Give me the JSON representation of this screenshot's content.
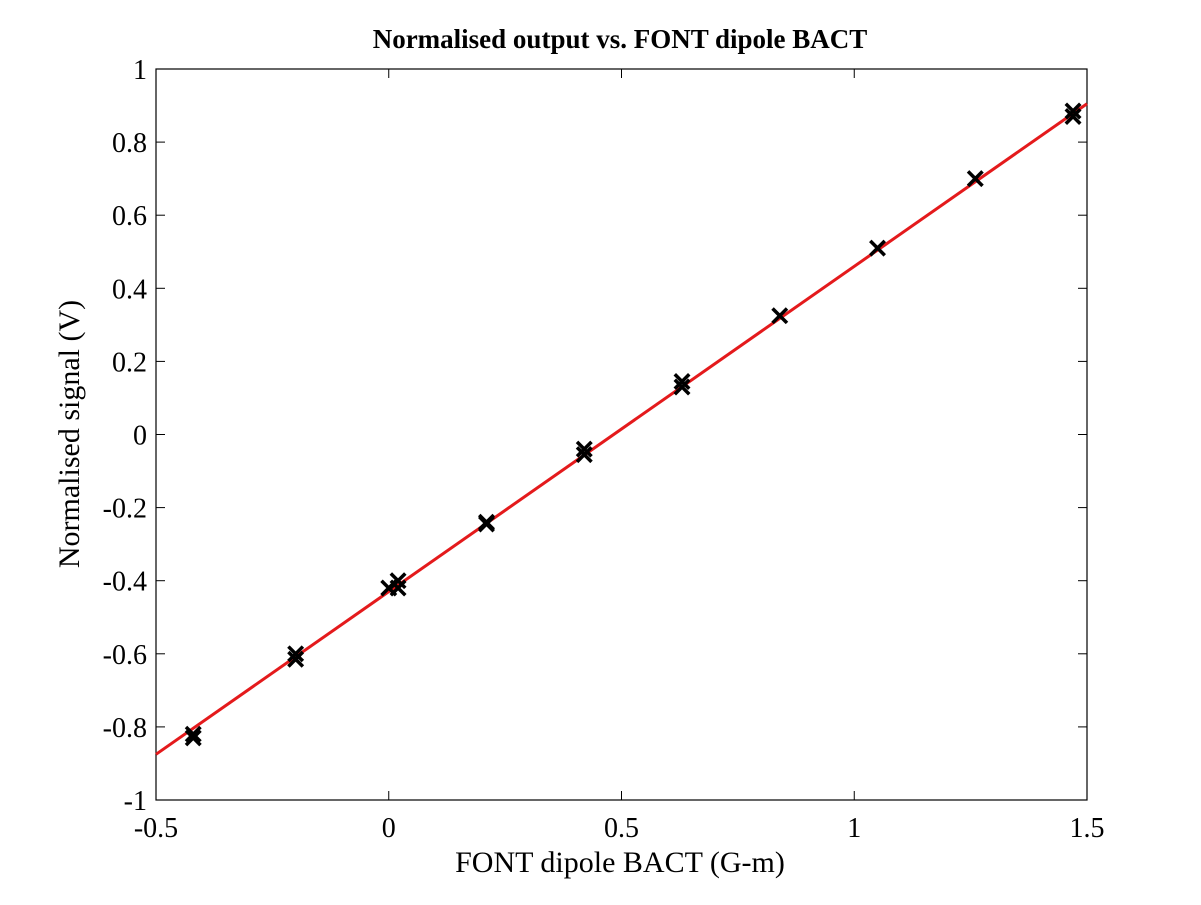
{
  "chart_data": {
    "type": "scatter",
    "title": "Normalised output vs. FONT dipole BACT",
    "xlabel": "FONT dipole BACT (G-m)",
    "ylabel": "Normalised signal (V)",
    "xlim": [
      -0.5,
      1.5
    ],
    "ylim": [
      -1,
      1
    ],
    "x_ticks": [
      -0.5,
      0,
      0.5,
      1,
      1.5
    ],
    "x_tick_labels": [
      "-0.5",
      "0",
      "0.5",
      "1",
      "1.5"
    ],
    "y_ticks": [
      -1,
      -0.8,
      -0.6,
      -0.4,
      -0.2,
      0,
      0.2,
      0.4,
      0.6,
      0.8,
      1
    ],
    "y_tick_labels": [
      "-1",
      "-0.8",
      "-0.6",
      "-0.4",
      "-0.2",
      "0",
      "0.2",
      "0.4",
      "0.6",
      "0.8",
      "1"
    ],
    "grid": false,
    "series": [
      {
        "marker": "x",
        "color": "#000000",
        "x": [
          -0.42,
          -0.42,
          -0.2,
          -0.2,
          0.0,
          0.02,
          0.02,
          0.21,
          0.21,
          0.42,
          0.42,
          0.63,
          0.63,
          0.84,
          1.05,
          1.26,
          1.47,
          1.47
        ],
        "y": [
          -0.82,
          -0.83,
          -0.6,
          -0.615,
          -0.42,
          -0.4,
          -0.42,
          -0.24,
          -0.245,
          -0.04,
          -0.055,
          0.145,
          0.13,
          0.325,
          0.51,
          0.7,
          0.885,
          0.87
        ]
      },
      {
        "type": "line",
        "color": "#e41a1c",
        "x": [
          -0.5,
          1.5
        ],
        "y": [
          -0.875,
          0.905
        ]
      }
    ]
  }
}
